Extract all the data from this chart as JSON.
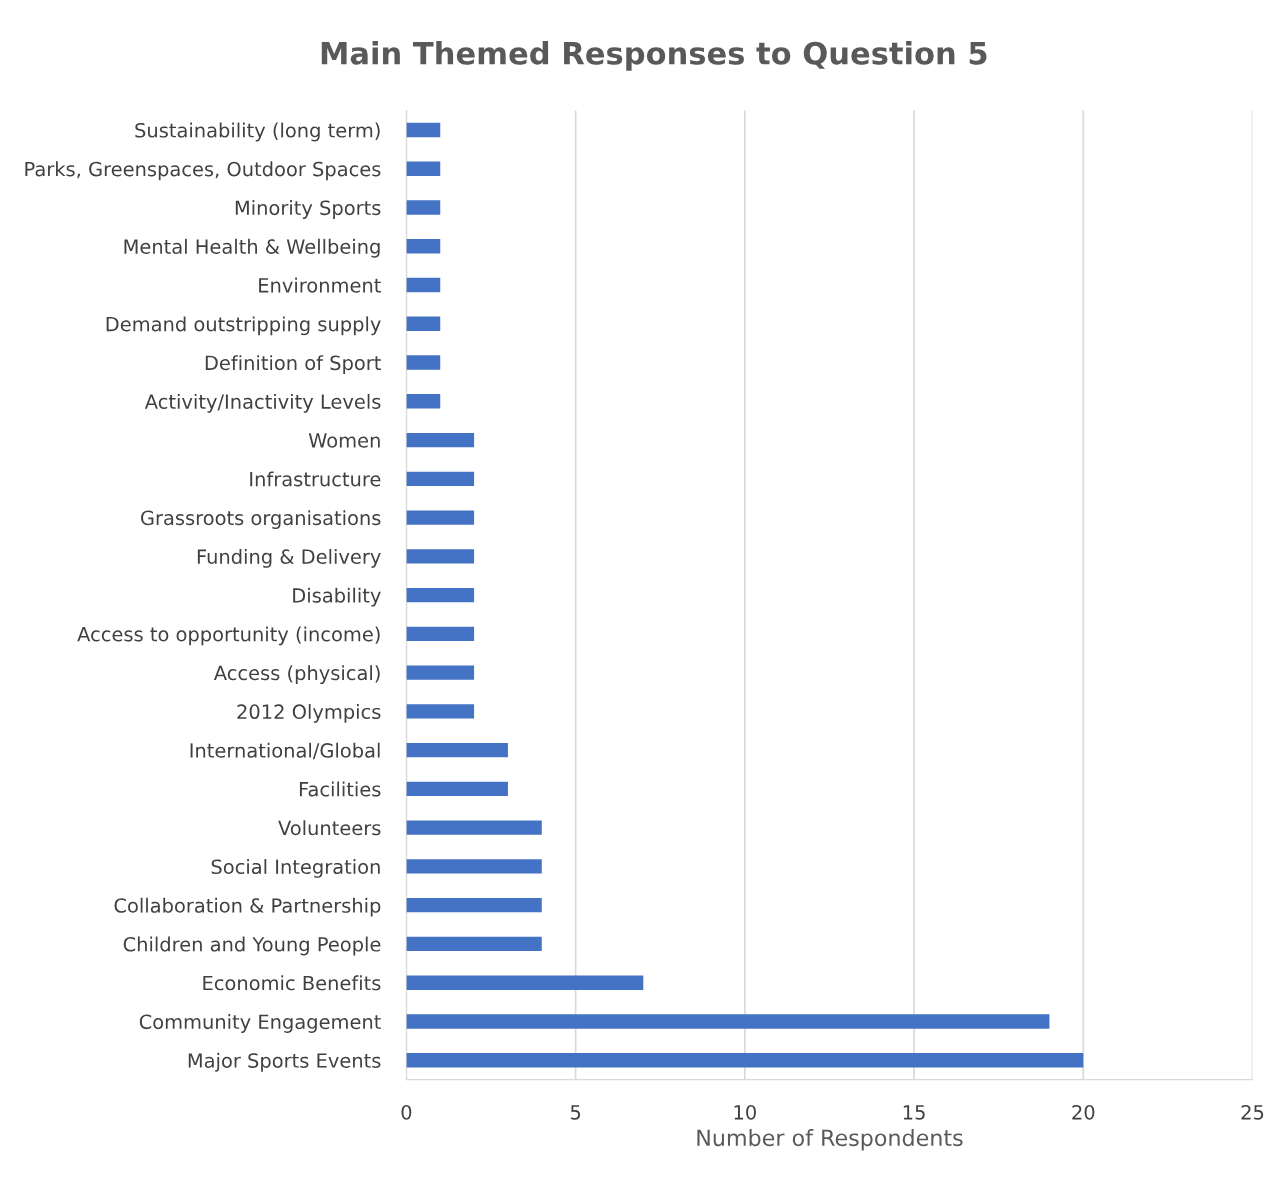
{
  "chart_data": {
    "type": "bar",
    "orientation": "horizontal",
    "title": "Main Themed Responses to Question 5",
    "xlabel": "Number of Respondents",
    "categories": [
      "Sustainability (long term)",
      "Parks, Greenspaces, Outdoor Spaces",
      "Minority Sports",
      "Mental Health & Wellbeing",
      "Environment",
      "Demand outstripping supply",
      "Definition of Sport",
      "Activity/Inactivity Levels",
      "Women",
      "Infrastructure",
      "Grassroots organisations",
      "Funding & Delivery",
      "Disability",
      "Access to opportunity (income)",
      "Access (physical)",
      "2012 Olympics",
      "International/Global",
      "Facilities",
      "Volunteers",
      "Social Integration",
      "Collaboration & Partnership",
      "Children and Young People",
      "Economic Benefits",
      "Community Engagement",
      "Major Sports Events"
    ],
    "values": [
      1,
      1,
      1,
      1,
      1,
      1,
      1,
      1,
      2,
      2,
      2,
      2,
      2,
      2,
      2,
      2,
      3,
      3,
      4,
      4,
      4,
      4,
      7,
      19,
      20
    ],
    "color": "#4472c4",
    "xlim": [
      0,
      25
    ],
    "xticks": [
      0,
      5,
      10,
      15,
      20,
      25
    ],
    "grid": "x"
  }
}
